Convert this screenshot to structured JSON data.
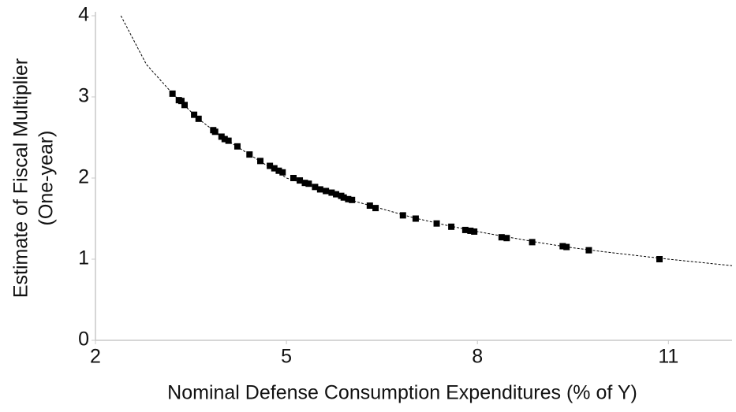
{
  "chart_data": {
    "type": "scatter",
    "x_label": "Nominal Defense Consumption Expenditures (% of Y)",
    "y_label": [
      "Estimate of Fiscal Multiplier",
      "(One-year)"
    ],
    "xlim": [
      2,
      12
    ],
    "xticks": [
      2,
      5,
      8,
      11
    ],
    "ylim": [
      0,
      4
    ],
    "yticks": [
      0,
      1,
      2,
      3,
      4
    ],
    "series": [
      {
        "color": "#000000",
        "marker": "square",
        "x": [
          3.21,
          3.31,
          3.35,
          3.4,
          3.55,
          3.62,
          3.85,
          3.88,
          3.98,
          4.03,
          4.09,
          4.23,
          4.42,
          4.59,
          4.74,
          4.81,
          4.88,
          4.94,
          5.11,
          5.21,
          5.29,
          5.35,
          5.45,
          5.53,
          5.62,
          5.71,
          5.78,
          5.86,
          5.9,
          5.97,
          6.03,
          6.31,
          6.4,
          6.83,
          7.03,
          7.36,
          7.59,
          7.81,
          7.89,
          7.95,
          8.38,
          8.46,
          8.86,
          9.34,
          9.4,
          9.75,
          10.86
        ],
        "values": [
          3.04,
          2.96,
          2.95,
          2.9,
          2.78,
          2.73,
          2.59,
          2.57,
          2.51,
          2.48,
          2.46,
          2.39,
          2.29,
          2.21,
          2.15,
          2.12,
          2.09,
          2.07,
          2.0,
          1.97,
          1.94,
          1.93,
          1.89,
          1.86,
          1.84,
          1.82,
          1.8,
          1.78,
          1.76,
          1.74,
          1.73,
          1.66,
          1.63,
          1.54,
          1.5,
          1.44,
          1.4,
          1.36,
          1.35,
          1.34,
          1.27,
          1.26,
          1.21,
          1.16,
          1.15,
          1.11,
          1.0
        ]
      },
      {
        "color": "#000000",
        "marker": "dashed-line",
        "x": [
          2.4,
          2.8,
          3.2,
          3.6,
          4,
          4.5,
          5,
          5.5,
          6,
          6.5,
          7,
          7.5,
          8,
          8.5,
          9,
          9.5,
          10,
          11,
          12
        ],
        "values": [
          4.0,
          3.4,
          3.05,
          2.74,
          2.5,
          2.25,
          2.0,
          1.88,
          1.73,
          1.62,
          1.51,
          1.42,
          1.34,
          1.27,
          1.2,
          1.14,
          1.09,
          1.0,
          0.92
        ]
      }
    ]
  }
}
